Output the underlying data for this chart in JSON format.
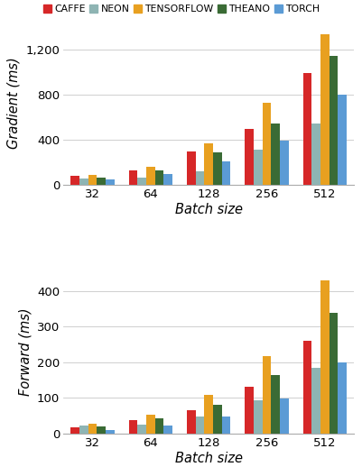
{
  "frameworks": [
    "Caffe",
    "Neon",
    "TensorFlow",
    "Theano",
    "Torch"
  ],
  "colors": [
    "#d62728",
    "#8eb4b3",
    "#e8a020",
    "#3a6b35",
    "#5b9bd5"
  ],
  "batch_sizes": [
    32,
    64,
    128,
    256,
    512
  ],
  "gradient_data": {
    "Caffe": [
      75,
      130,
      295,
      490,
      990
    ],
    "Neon": [
      55,
      65,
      115,
      310,
      545
    ],
    "TensorFlow": [
      90,
      155,
      370,
      725,
      1330
    ],
    "Theano": [
      60,
      125,
      290,
      545,
      1140
    ],
    "Torch": [
      45,
      95,
      205,
      390,
      800
    ]
  },
  "forward_data": {
    "Caffe": [
      18,
      38,
      65,
      130,
      260
    ],
    "Neon": [
      22,
      25,
      47,
      93,
      185
    ],
    "TensorFlow": [
      27,
      52,
      108,
      218,
      430
    ],
    "Theano": [
      20,
      42,
      80,
      165,
      340
    ],
    "Torch": [
      10,
      22,
      48,
      98,
      200
    ]
  },
  "gradient_yticks": [
    0,
    400,
    800,
    1200
  ],
  "forward_yticks": [
    0,
    100,
    200,
    300,
    400
  ],
  "gradient_ylim": [
    0,
    1450
  ],
  "forward_ylim": [
    0,
    460
  ],
  "xlabel": "Batch size",
  "ylabel_gradient": "Gradient (ms)",
  "ylabel_forward": "Forward (ms)",
  "legend_labels": [
    "CAFFE",
    "NEON",
    "TENSORFLOW",
    "THEANO",
    "TORCH"
  ]
}
